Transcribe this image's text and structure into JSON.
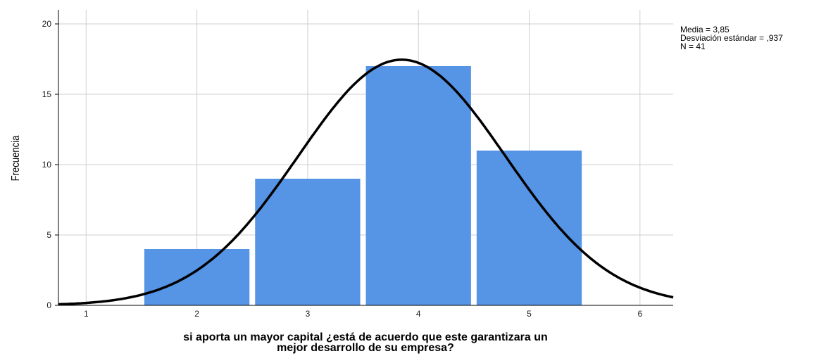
{
  "chart_data": {
    "type": "bar",
    "subtype": "histogram-with-normal-curve",
    "categories": [
      "2",
      "3",
      "4",
      "5"
    ],
    "bin_centers": [
      2,
      3,
      4,
      5
    ],
    "values": [
      4,
      9,
      17,
      11
    ],
    "xlabel_lines": [
      "si aporta un mayor capital ¿está de acuerdo que este garantizara un",
      "mejor desarrollo de su empresa?"
    ],
    "ylabel": "Frecuencia",
    "xlim": [
      0.75,
      6.3
    ],
    "ylim": [
      0,
      21
    ],
    "x_ticks": [
      1,
      2,
      3,
      4,
      5,
      6
    ],
    "y_ticks": [
      0,
      5,
      10,
      15,
      20
    ],
    "grid": true,
    "bar_color": "#5694e6",
    "curve_color": "#000000",
    "normal_curve": {
      "mean": 3.85,
      "sd": 0.937,
      "n": 41,
      "bin_width": 1
    },
    "stats_lines": [
      "Media = 3,85",
      "Desviación estándar = ,937",
      "N = 41"
    ]
  }
}
